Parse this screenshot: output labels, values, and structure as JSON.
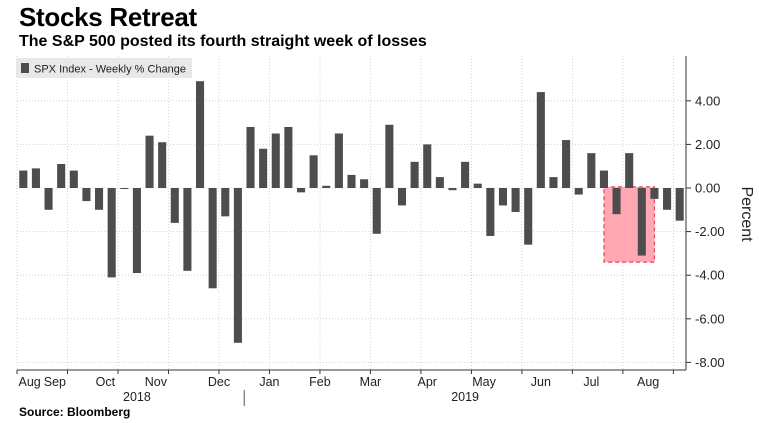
{
  "title": "Stocks Retreat",
  "subtitle": "The S&P 500 posted its fourth straight week of losses",
  "source": "Source: Bloomberg",
  "colors": {
    "bar": "#4d4d4d",
    "highlight_fill": "#ffa7b3",
    "highlight_border": "#ef4257",
    "grid": "#c8c8c8",
    "legend_bg": "#e8e8e8"
  },
  "chart_data": {
    "type": "bar",
    "title": "Stocks Retreat",
    "subtitle": "The S&P 500 posted its fourth straight week of losses",
    "legend": [
      "SPX Index - Weekly % Change"
    ],
    "legend_position": "top-left",
    "ylabel": "Percent",
    "ylim": [
      -8.2,
      6.0
    ],
    "y_ticks": [
      {
        "value": 4,
        "label": "4.00"
      },
      {
        "value": 2,
        "label": "2.00"
      },
      {
        "value": 0,
        "label": "0.00"
      },
      {
        "value": -2,
        "label": "-2.00"
      },
      {
        "value": -4,
        "label": "-4.00"
      },
      {
        "value": -6,
        "label": "-6.00"
      },
      {
        "value": -8,
        "label": "-8.00"
      }
    ],
    "y_axis_position": "right",
    "grid": true,
    "x_month_labels": [
      {
        "label": "Aug",
        "week": 0.5
      },
      {
        "label": "Sep",
        "week": 2.5
      },
      {
        "label": "Oct",
        "week": 6.5
      },
      {
        "label": "Nov",
        "week": 10.5
      },
      {
        "label": "Dec",
        "week": 15.5
      },
      {
        "label": "Jan",
        "week": 19.5
      },
      {
        "label": "Feb",
        "week": 23.5
      },
      {
        "label": "Mar",
        "week": 27.5
      },
      {
        "label": "Apr",
        "week": 32.0
      },
      {
        "label": "May",
        "week": 36.5
      },
      {
        "label": "Jun",
        "week": 41.0
      },
      {
        "label": "Jul",
        "week": 45.0
      },
      {
        "label": "Aug",
        "week": 49.5
      }
    ],
    "x_year_labels": [
      {
        "label": "2018",
        "week": 9.0
      },
      {
        "label": "2019",
        "week": 35.0
      }
    ],
    "year_separator_week": 17.5,
    "highlight": {
      "from_week": 46.5,
      "to_week": 50.5,
      "y_top": 0.05,
      "y_bottom": -3.4
    },
    "series": [
      {
        "name": "SPX Index - Weekly % Change",
        "values": [
          0.8,
          0.9,
          -1.0,
          1.1,
          0.8,
          -0.6,
          -1.0,
          -4.1,
          0.0,
          -3.9,
          2.4,
          2.1,
          -1.6,
          -3.8,
          4.9,
          -4.6,
          -1.3,
          -7.1,
          2.8,
          1.8,
          2.5,
          2.8,
          -0.2,
          1.5,
          0.1,
          2.5,
          0.6,
          0.4,
          -2.1,
          2.9,
          -0.8,
          1.2,
          2.0,
          0.5,
          -0.1,
          1.2,
          0.2,
          -2.2,
          -0.8,
          -1.1,
          -2.6,
          4.4,
          0.5,
          2.2,
          -0.3,
          1.6,
          0.8,
          -1.2,
          1.6,
          -3.1,
          -0.5,
          -1.0,
          -1.5
        ]
      }
    ]
  }
}
